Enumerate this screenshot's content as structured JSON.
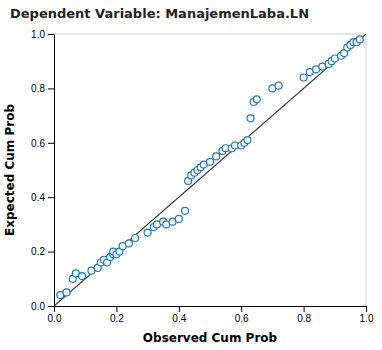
{
  "chart_data": {
    "type": "scatter",
    "title": "Dependent Variable: ManajemenLaba.LN",
    "xlabel": "Observed Cum Prob",
    "ylabel": "Expected Cum Prob",
    "xlim": [
      0.0,
      1.0
    ],
    "ylim": [
      0.0,
      1.0
    ],
    "xticks": [
      {
        "value": 0,
        "label": "0.0"
      },
      0.2,
      0.4,
      0.6,
      0.8,
      {
        "value": 1,
        "label": "1.0"
      }
    ],
    "yticks": [
      {
        "value": 0,
        "label": "0.0"
      },
      0.2,
      0.4,
      0.6,
      0.8,
      {
        "value": 1,
        "label": "1.0"
      }
    ],
    "series": [
      {
        "type": "scatter",
        "marker": "circle",
        "x": [
          0.02,
          0.04,
          0.06,
          0.07,
          0.09,
          0.12,
          0.14,
          0.15,
          0.16,
          0.17,
          0.18,
          0.19,
          0.19,
          0.2,
          0.21,
          0.22,
          0.24,
          0.26,
          0.3,
          0.32,
          0.33,
          0.35,
          0.36,
          0.38,
          0.4,
          0.42,
          0.43,
          0.44,
          0.45,
          0.46,
          0.47,
          0.48,
          0.5,
          0.52,
          0.54,
          0.55,
          0.57,
          0.58,
          0.6,
          0.61,
          0.62,
          0.63,
          0.64,
          0.65,
          0.7,
          0.72,
          0.8,
          0.82,
          0.84,
          0.86,
          0.88,
          0.89,
          0.9,
          0.92,
          0.93,
          0.94,
          0.95,
          0.96,
          0.97,
          0.98
        ],
        "values": [
          0.04,
          0.05,
          0.1,
          0.12,
          0.11,
          0.13,
          0.14,
          0.16,
          0.17,
          0.16,
          0.18,
          0.19,
          0.2,
          0.19,
          0.2,
          0.22,
          0.23,
          0.25,
          0.27,
          0.29,
          0.3,
          0.31,
          0.3,
          0.31,
          0.32,
          0.35,
          0.46,
          0.48,
          0.49,
          0.5,
          0.51,
          0.52,
          0.53,
          0.55,
          0.57,
          0.58,
          0.58,
          0.59,
          0.59,
          0.6,
          0.61,
          0.69,
          0.75,
          0.76,
          0.8,
          0.81,
          0.84,
          0.86,
          0.87,
          0.88,
          0.89,
          0.9,
          0.91,
          0.92,
          0.93,
          0.95,
          0.96,
          0.97,
          0.97,
          0.98
        ]
      },
      {
        "type": "line",
        "line_style": "solid",
        "x": [
          0,
          1
        ],
        "values": [
          0,
          1
        ]
      }
    ]
  }
}
